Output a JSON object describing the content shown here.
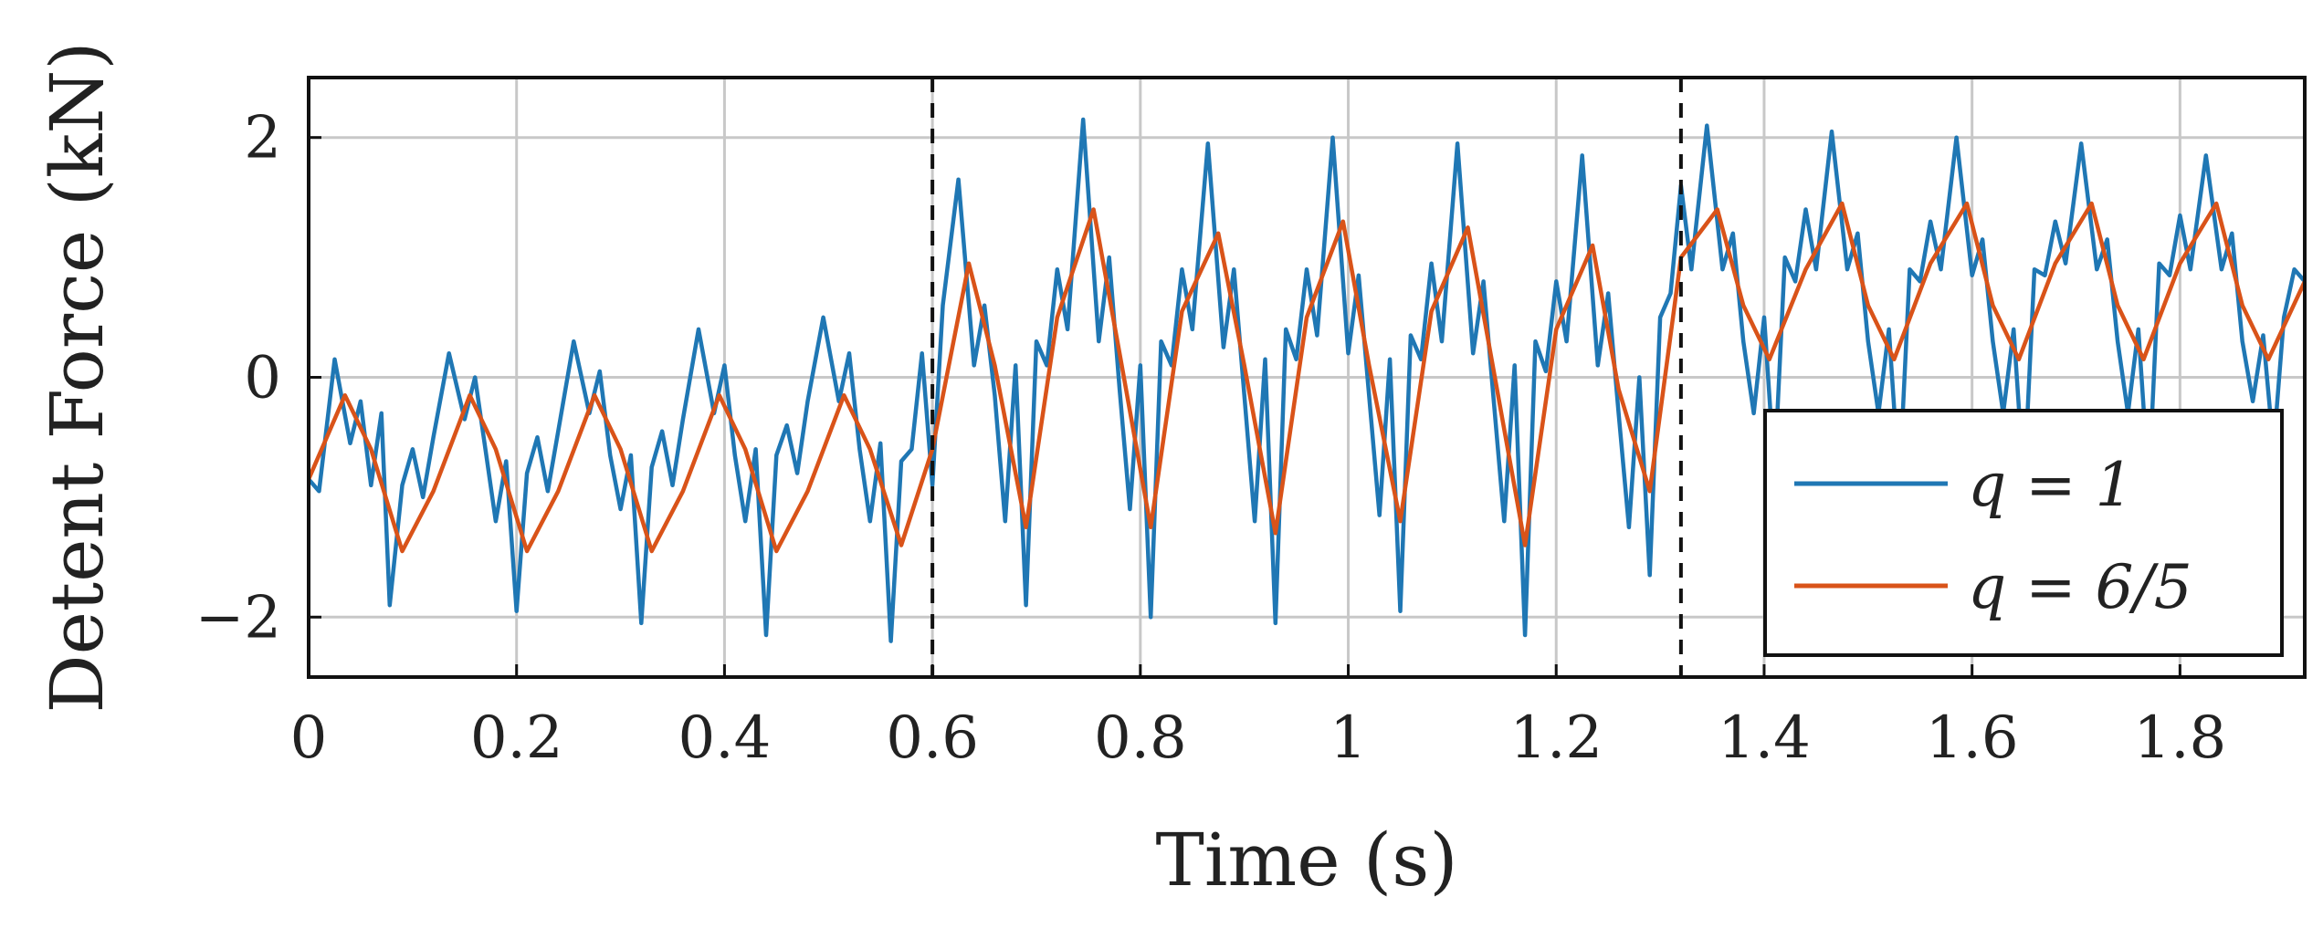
{
  "chart_data": {
    "type": "line",
    "title": "",
    "xlabel": "Time (s)",
    "ylabel": "Detent Force (kN)",
    "xlim": [
      0,
      1.92
    ],
    "ylim": [
      -2.5,
      2.5
    ],
    "x_ticks": [
      0,
      0.2,
      0.4,
      0.6,
      0.8,
      1,
      1.2,
      1.4,
      1.6,
      1.8
    ],
    "x_tick_labels": [
      "0",
      "0.2",
      "0.4",
      "0.6",
      "0.8",
      "1",
      "1.2",
      "1.4",
      "1.6",
      "1.8"
    ],
    "y_ticks": [
      -2,
      0,
      2
    ],
    "y_tick_labels": [
      "−2",
      "0",
      "2"
    ],
    "grid": true,
    "legend_position": "bottom-right",
    "vertical_markers": [
      0.6,
      1.32
    ],
    "series": [
      {
        "name": "q = 1",
        "color": "#1f77b4",
        "sampling": "sampled at key extrema",
        "x": [
          0.0,
          0.01,
          0.025,
          0.04,
          0.05,
          0.06,
          0.07,
          0.078,
          0.09,
          0.1,
          0.11,
          0.12,
          0.135,
          0.15,
          0.16,
          0.17,
          0.18,
          0.19,
          0.2,
          0.21,
          0.22,
          0.23,
          0.24,
          0.255,
          0.27,
          0.28,
          0.29,
          0.3,
          0.31,
          0.32,
          0.33,
          0.34,
          0.35,
          0.36,
          0.375,
          0.39,
          0.4,
          0.41,
          0.42,
          0.43,
          0.44,
          0.45,
          0.46,
          0.47,
          0.48,
          0.495,
          0.51,
          0.52,
          0.53,
          0.54,
          0.55,
          0.56,
          0.57,
          0.58,
          0.59,
          0.6,
          0.61,
          0.625,
          0.64,
          0.65,
          0.66,
          0.67,
          0.68,
          0.69,
          0.7,
          0.71,
          0.72,
          0.73,
          0.745,
          0.76,
          0.77,
          0.78,
          0.79,
          0.8,
          0.81,
          0.82,
          0.83,
          0.84,
          0.85,
          0.865,
          0.88,
          0.89,
          0.9,
          0.91,
          0.92,
          0.93,
          0.94,
          0.95,
          0.96,
          0.97,
          0.985,
          1.0,
          1.01,
          1.02,
          1.03,
          1.04,
          1.05,
          1.06,
          1.07,
          1.08,
          1.09,
          1.105,
          1.12,
          1.13,
          1.14,
          1.15,
          1.16,
          1.17,
          1.18,
          1.19,
          1.2,
          1.21,
          1.225,
          1.24,
          1.25,
          1.26,
          1.27,
          1.28,
          1.29,
          1.3,
          1.31,
          1.32,
          1.33,
          1.345,
          1.36,
          1.37,
          1.38,
          1.39,
          1.4,
          1.41,
          1.42,
          1.43,
          1.44,
          1.45,
          1.465,
          1.48,
          1.49,
          1.5,
          1.51,
          1.52,
          1.53,
          1.54,
          1.55,
          1.56,
          1.57,
          1.585,
          1.6,
          1.61,
          1.62,
          1.63,
          1.64,
          1.65,
          1.66,
          1.67,
          1.68,
          1.69,
          1.705,
          1.72,
          1.73,
          1.74,
          1.75,
          1.76,
          1.77,
          1.78,
          1.79,
          1.8,
          1.81,
          1.825,
          1.84,
          1.85,
          1.86,
          1.87,
          1.88,
          1.89,
          1.9,
          1.91,
          1.92
        ],
        "y": [
          -0.85,
          -0.95,
          0.15,
          -0.55,
          -0.2,
          -0.9,
          -0.3,
          -1.9,
          -0.9,
          -0.6,
          -1.0,
          -0.5,
          0.2,
          -0.35,
          0.0,
          -0.6,
          -1.2,
          -0.7,
          -1.95,
          -0.8,
          -0.5,
          -0.95,
          -0.45,
          0.3,
          -0.3,
          0.05,
          -0.65,
          -1.1,
          -0.65,
          -2.05,
          -0.75,
          -0.45,
          -0.9,
          -0.35,
          0.4,
          -0.3,
          0.1,
          -0.65,
          -1.2,
          -0.6,
          -2.15,
          -0.65,
          -0.4,
          -0.8,
          -0.2,
          0.5,
          -0.2,
          0.2,
          -0.6,
          -1.2,
          -0.55,
          -2.2,
          -0.7,
          -0.6,
          0.2,
          -0.9,
          0.6,
          1.65,
          0.1,
          0.6,
          -0.15,
          -1.2,
          0.1,
          -1.9,
          0.3,
          0.1,
          0.9,
          0.4,
          2.15,
          0.3,
          1.0,
          -0.1,
          -1.1,
          0.1,
          -2.0,
          0.3,
          0.1,
          0.9,
          0.4,
          1.95,
          0.25,
          0.9,
          -0.15,
          -1.2,
          0.15,
          -2.05,
          0.4,
          0.15,
          0.9,
          0.35,
          2.0,
          0.2,
          0.85,
          -0.15,
          -1.15,
          0.15,
          -1.95,
          0.35,
          0.15,
          0.95,
          0.3,
          1.95,
          0.2,
          0.8,
          -0.2,
          -1.2,
          0.1,
          -2.15,
          0.3,
          0.05,
          0.8,
          0.3,
          1.85,
          0.1,
          0.7,
          -0.3,
          -1.25,
          0.0,
          -1.65,
          0.5,
          0.7,
          1.6,
          0.9,
          2.1,
          0.9,
          1.2,
          0.3,
          -0.3,
          0.5,
          -0.8,
          1.0,
          0.8,
          1.4,
          0.9,
          2.05,
          0.9,
          1.2,
          0.3,
          -0.3,
          0.4,
          -0.9,
          0.9,
          0.8,
          1.3,
          0.9,
          2.0,
          0.85,
          1.15,
          0.3,
          -0.3,
          0.4,
          -0.9,
          0.9,
          0.85,
          1.3,
          0.95,
          1.95,
          0.9,
          1.15,
          0.3,
          -0.3,
          0.4,
          -0.9,
          0.95,
          0.85,
          1.35,
          0.9,
          1.85,
          0.9,
          1.2,
          0.3,
          -0.2,
          0.35,
          -0.6,
          0.5,
          0.9,
          0.8
        ]
      },
      {
        "name": "q = 6/5",
        "color": "#d95319",
        "sampling": "sampled at key extrema",
        "x": [
          0.0,
          0.035,
          0.06,
          0.09,
          0.12,
          0.155,
          0.18,
          0.21,
          0.24,
          0.275,
          0.3,
          0.33,
          0.36,
          0.395,
          0.42,
          0.45,
          0.48,
          0.515,
          0.54,
          0.57,
          0.6,
          0.635,
          0.66,
          0.69,
          0.72,
          0.755,
          0.78,
          0.81,
          0.84,
          0.875,
          0.9,
          0.93,
          0.96,
          0.995,
          1.02,
          1.05,
          1.08,
          1.115,
          1.14,
          1.17,
          1.2,
          1.235,
          1.26,
          1.29,
          1.32,
          1.355,
          1.38,
          1.405,
          1.44,
          1.475,
          1.5,
          1.525,
          1.56,
          1.595,
          1.62,
          1.645,
          1.68,
          1.715,
          1.74,
          1.765,
          1.8,
          1.835,
          1.86,
          1.885,
          1.92
        ],
        "y": [
          -0.85,
          -0.15,
          -0.6,
          -1.45,
          -0.95,
          -0.15,
          -0.6,
          -1.45,
          -0.95,
          -0.15,
          -0.6,
          -1.45,
          -0.95,
          -0.15,
          -0.6,
          -1.45,
          -0.95,
          -0.15,
          -0.6,
          -1.4,
          -0.6,
          0.95,
          0.1,
          -1.25,
          0.5,
          1.4,
          0.2,
          -1.25,
          0.55,
          1.2,
          0.1,
          -1.3,
          0.5,
          1.3,
          0.1,
          -1.2,
          0.55,
          1.25,
          0.05,
          -1.4,
          0.4,
          1.1,
          -0.1,
          -0.95,
          1.0,
          1.4,
          0.6,
          0.15,
          0.9,
          1.45,
          0.6,
          0.15,
          0.95,
          1.45,
          0.6,
          0.15,
          0.95,
          1.45,
          0.6,
          0.15,
          0.95,
          1.45,
          0.6,
          0.15,
          0.8
        ]
      }
    ]
  }
}
